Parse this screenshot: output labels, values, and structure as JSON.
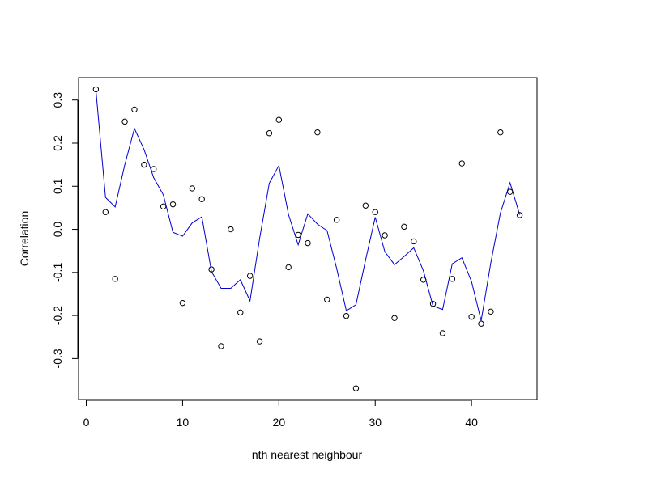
{
  "chart_data": {
    "type": "scatter",
    "title": "",
    "xlabel": "nth nearest neighbour",
    "ylabel": "Correlation",
    "xlim": [
      -0.8,
      46.8
    ],
    "ylim": [
      -0.395,
      0.352
    ],
    "x_ticks": [
      0,
      10,
      20,
      30,
      40
    ],
    "y_ticks": [
      -0.3,
      -0.2,
      -0.1,
      0.0,
      0.1,
      0.2,
      0.3
    ],
    "y_tick_labels": [
      "-0.3",
      "-0.2",
      "-0.1",
      "0.0",
      "0.1",
      "0.2",
      "0.3"
    ],
    "grid": false,
    "line_color": "#0000cc",
    "point_color": "#000000",
    "series": [
      {
        "kind": "points",
        "x": [
          1,
          2,
          3,
          4,
          5,
          6,
          7,
          8,
          9,
          10,
          11,
          12,
          13,
          14,
          15,
          16,
          17,
          18,
          19,
          20,
          21,
          22,
          23,
          24,
          25,
          26,
          27,
          28,
          29,
          30,
          31,
          32,
          33,
          34,
          35,
          36,
          37,
          38,
          39,
          40,
          41,
          42,
          43,
          44,
          45
        ],
        "values": [
          0.325,
          0.04,
          -0.115,
          0.25,
          0.278,
          0.15,
          0.14,
          0.053,
          0.058,
          -0.171,
          0.095,
          0.07,
          -0.093,
          -0.271,
          0.0,
          -0.193,
          -0.108,
          -0.26,
          0.223,
          0.254,
          -0.088,
          -0.013,
          -0.032,
          0.225,
          -0.163,
          0.022,
          -0.201,
          -0.369,
          0.055,
          0.04,
          -0.014,
          -0.206,
          0.006,
          -0.028,
          -0.117,
          -0.173,
          -0.241,
          -0.115,
          0.153,
          -0.203,
          -0.219,
          -0.191,
          0.225,
          0.087,
          0.033
        ]
      },
      {
        "kind": "line",
        "x": [
          1,
          2,
          3,
          4,
          5,
          6,
          7,
          8,
          9,
          10,
          11,
          12,
          13,
          14,
          15,
          16,
          17,
          18,
          19,
          20,
          21,
          22,
          23,
          24,
          25,
          26,
          27,
          28,
          29,
          30,
          31,
          32,
          33,
          34,
          35,
          36,
          37,
          38,
          39,
          40,
          41,
          42,
          43,
          44,
          45
        ],
        "values": [
          0.323,
          0.074,
          0.052,
          0.15,
          0.234,
          0.185,
          0.12,
          0.08,
          -0.007,
          -0.016,
          0.015,
          0.029,
          -0.098,
          -0.137,
          -0.137,
          -0.117,
          -0.166,
          -0.021,
          0.107,
          0.148,
          0.034,
          -0.036,
          0.036,
          0.012,
          -0.003,
          -0.091,
          -0.189,
          -0.175,
          -0.071,
          0.028,
          -0.052,
          -0.082,
          -0.063,
          -0.043,
          -0.096,
          -0.178,
          -0.186,
          -0.08,
          -0.066,
          -0.121,
          -0.212,
          -0.078,
          0.038,
          0.108,
          0.034
        ]
      }
    ]
  }
}
